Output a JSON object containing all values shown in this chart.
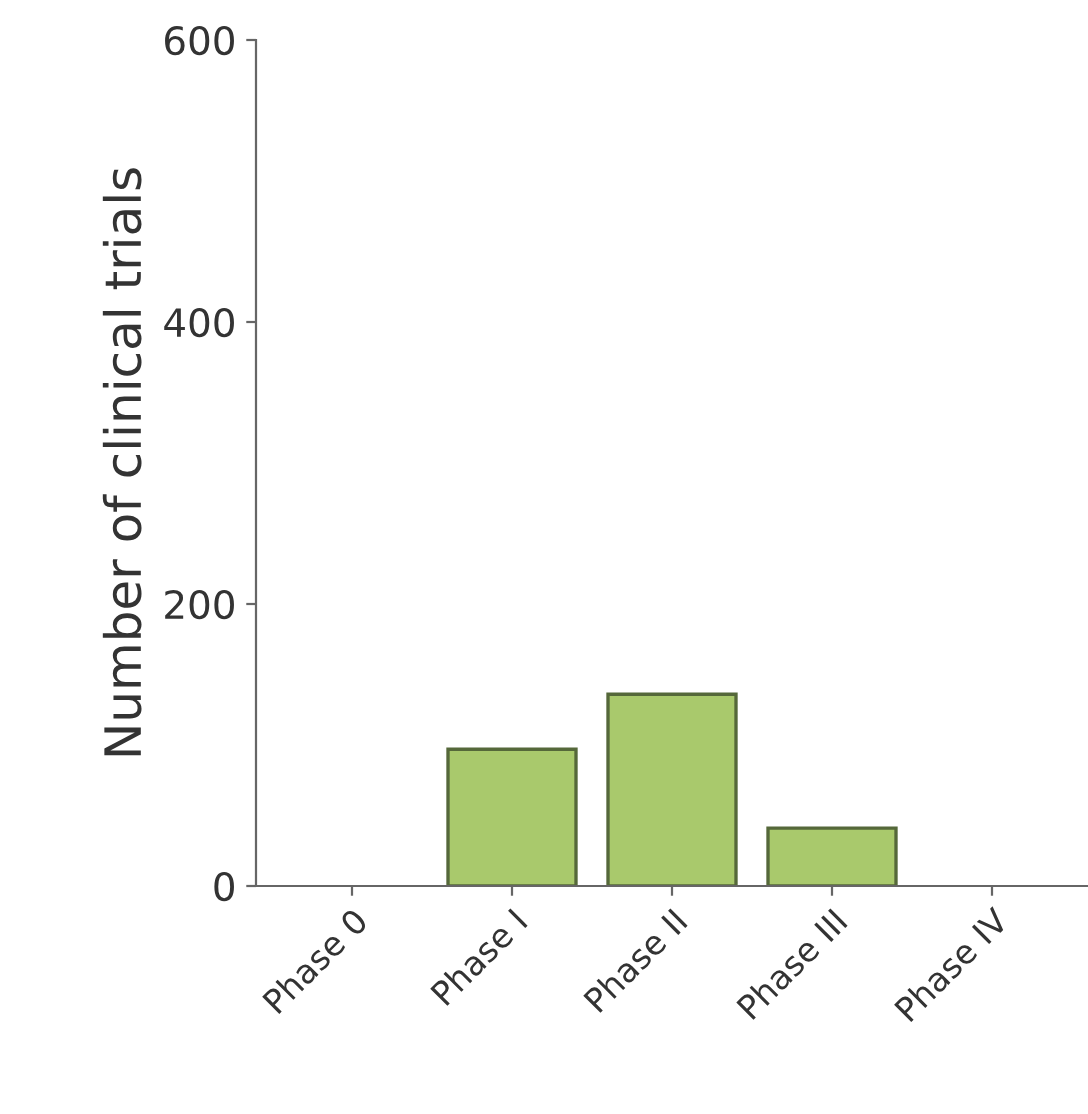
{
  "chart_data": {
    "type": "bar",
    "ylabel": "Number of clinical trials",
    "categories": [
      "Phase 0",
      "Phase I",
      "Phase II",
      "Phase III",
      "Phase IV"
    ],
    "values": [
      0,
      97,
      136,
      41,
      0
    ],
    "color": "#a9c96c",
    "ylim": [
      0,
      600
    ],
    "yticks": [
      0,
      200,
      400,
      600
    ],
    "grid": false
  }
}
